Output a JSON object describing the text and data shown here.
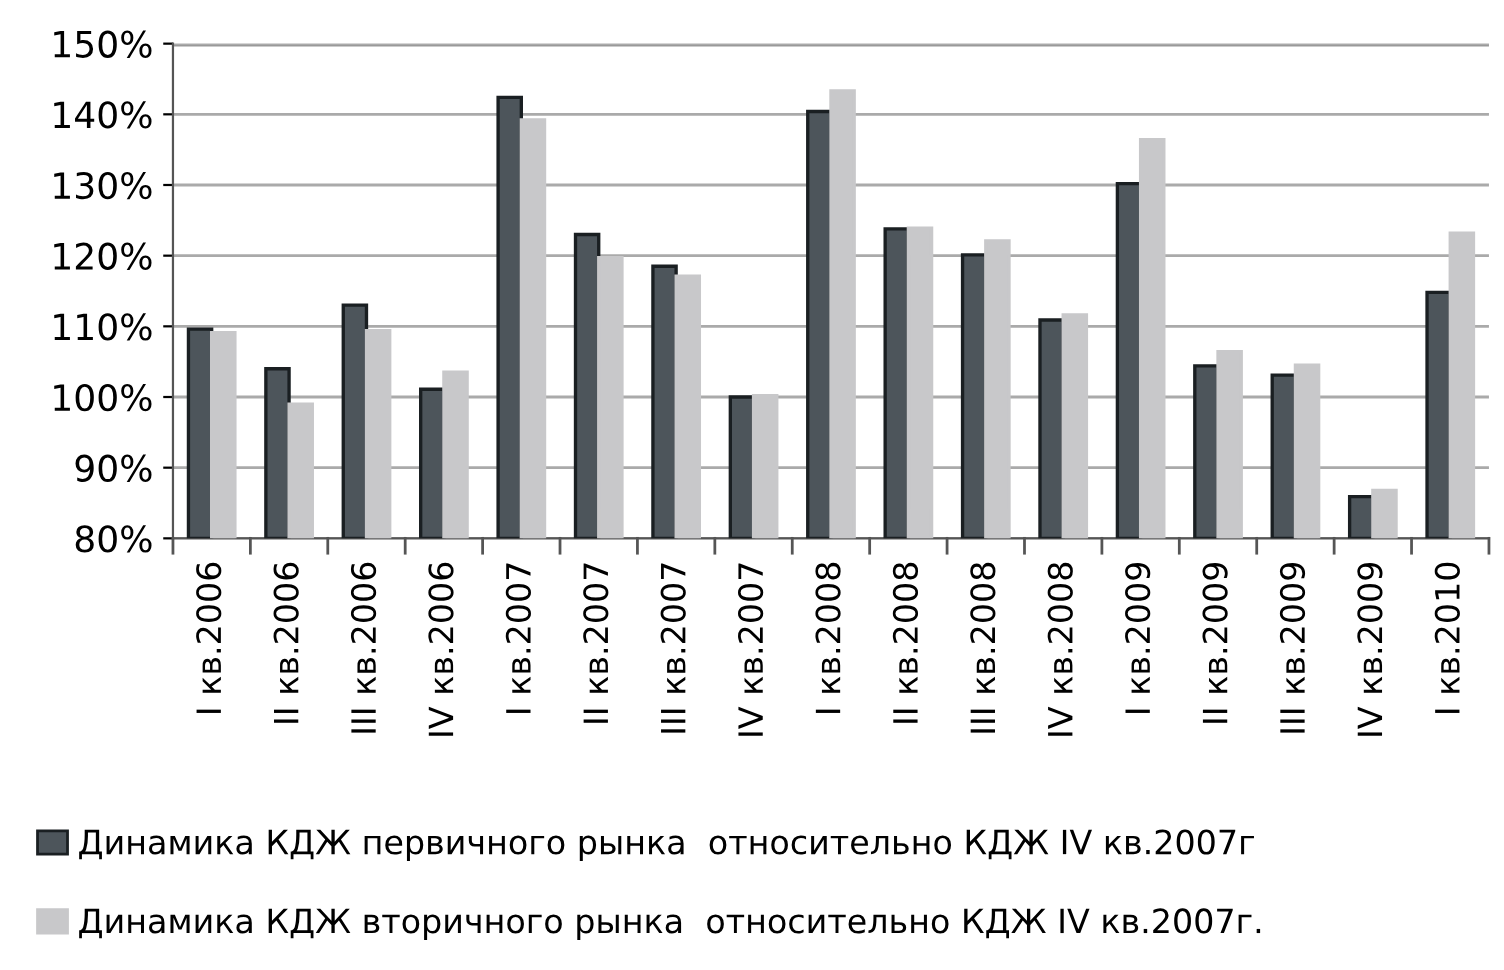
{
  "chart_data": {
    "type": "bar",
    "categories": [
      "I кв.2006",
      "II кв.2006",
      "III кв.2006",
      "IV кв.2006",
      "I кв.2007",
      "II кв.2007",
      "III кв.2007",
      "IV кв.2007",
      "I кв.2008",
      "II кв.2008",
      "III кв.2008",
      "IV кв.2008",
      "I кв.2009",
      "II кв.2009",
      "III кв.2009",
      "IV кв.2009",
      "I кв.2010"
    ],
    "series": [
      {
        "name": "Динамика КДЖ первичного рынка  относительно КДЖ IV кв.2007г",
        "color": "#4d555b",
        "values": [
          109.6,
          104.0,
          113.0,
          101.1,
          142.4,
          123.0,
          118.5,
          100.0,
          140.4,
          123.8,
          120.1,
          110.9,
          130.2,
          104.4,
          103.1,
          85.9,
          114.8
        ]
      },
      {
        "name": "Динамика КДЖ вторичного рынка  относительно КДЖ IV кв.2007г.",
        "color": "#c8c8ca",
        "values": [
          109.1,
          99.0,
          109.4,
          103.5,
          139.2,
          119.7,
          117.1,
          100.2,
          143.3,
          123.9,
          122.1,
          111.6,
          136.4,
          106.4,
          104.5,
          86.8,
          123.2
        ]
      }
    ],
    "ylim": [
      80,
      150
    ],
    "yticks": [
      {
        "value": 80,
        "label": "80%"
      },
      {
        "value": 90,
        "label": "90%"
      },
      {
        "value": 100,
        "label": "100%"
      },
      {
        "value": 110,
        "label": "110%"
      },
      {
        "value": 120,
        "label": "120%"
      },
      {
        "value": 130,
        "label": "130%"
      },
      {
        "value": 140,
        "label": "140%"
      },
      {
        "value": 150,
        "label": "150%"
      }
    ],
    "grid": "y",
    "legend": "bottom"
  }
}
